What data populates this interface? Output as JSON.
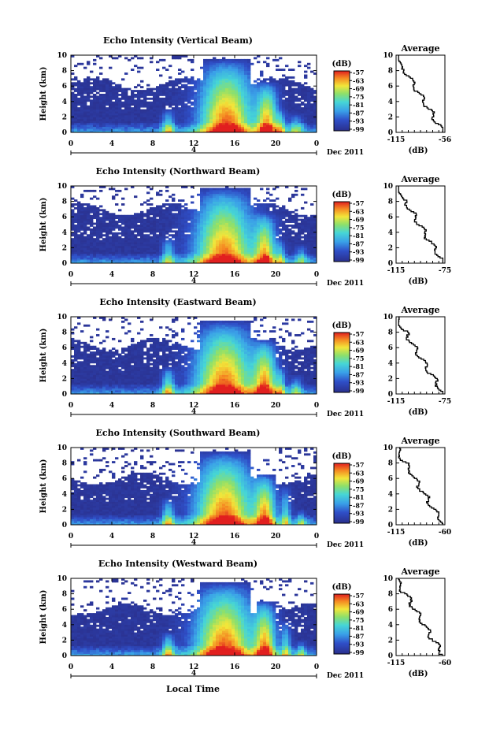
{
  "figure": {
    "xlabel": "Local Time",
    "panels_count": 5
  },
  "chart_data": [
    {
      "type": "heatmap",
      "title": "Echo Intensity (Vertical Beam)",
      "ylabel": "Height (km)",
      "xticks": [
        "0",
        "4",
        "8",
        "12",
        "16",
        "20",
        "0"
      ],
      "yticks": [
        "0",
        "2",
        "4",
        "6",
        "8",
        "10"
      ],
      "xlim": [
        0,
        24
      ],
      "ylim": [
        0,
        10
      ],
      "date_label": "Dec 2011",
      "date_sub": "4",
      "colorbar": {
        "label": "(dB)",
        "ticks": [
          "-57",
          "-63",
          "-69",
          "-75",
          "-81",
          "-87",
          "-93",
          "-99"
        ]
      },
      "profile": {
        "title": "Average",
        "xlabel": "(dB)",
        "xticks": [
          "-115",
          "-56"
        ],
        "yticks": [
          "0",
          "2",
          "4",
          "6",
          "8",
          "10"
        ]
      },
      "cloud_top_km": 6.3,
      "cells": [
        {
          "t": 9.5,
          "w": 0.6,
          "h": 3.0,
          "amp": 0.55
        },
        {
          "t": 15.2,
          "w": 2.6,
          "h": 9.5,
          "amp": 0.98
        },
        {
          "t": 19.2,
          "w": 1.0,
          "h": 6.5,
          "amp": 0.85
        },
        {
          "t": 20.5,
          "w": 0.5,
          "h": 3.0,
          "amp": 0.45
        },
        {
          "t": 22.0,
          "w": 0.7,
          "h": 2.5,
          "amp": 0.45
        }
      ]
    },
    {
      "type": "heatmap",
      "title": "Echo Intensity (Northward Beam)",
      "ylabel": "Height (km)",
      "xticks": [
        "0",
        "4",
        "8",
        "12",
        "16",
        "20",
        "0"
      ],
      "yticks": [
        "0",
        "2",
        "4",
        "6",
        "8",
        "10"
      ],
      "xlim": [
        0,
        24
      ],
      "ylim": [
        0,
        10
      ],
      "date_label": "Dec 2011",
      "date_sub": "4",
      "colorbar": {
        "label": "(dB)",
        "ticks": [
          "-57",
          "-63",
          "-69",
          "-75",
          "-81",
          "-87",
          "-93",
          "-99"
        ]
      },
      "profile": {
        "title": "Average",
        "xlabel": "(dB)",
        "xticks": [
          "-115",
          "-75"
        ],
        "yticks": [
          "0",
          "2",
          "4",
          "6",
          "8",
          "10"
        ]
      },
      "cloud_top_km": 7.0,
      "cells": [
        {
          "t": 9.5,
          "w": 0.6,
          "h": 3.5,
          "amp": 0.5
        },
        {
          "t": 15.0,
          "w": 2.8,
          "h": 9.8,
          "amp": 0.95
        },
        {
          "t": 19.0,
          "w": 1.0,
          "h": 6.5,
          "amp": 0.8
        },
        {
          "t": 20.5,
          "w": 0.5,
          "h": 3.0,
          "amp": 0.45
        },
        {
          "t": 22.5,
          "w": 0.6,
          "h": 2.5,
          "amp": 0.4
        }
      ]
    },
    {
      "type": "heatmap",
      "title": "Echo Intensity (Eastward Beam)",
      "ylabel": "Height (km)",
      "xticks": [
        "0",
        "4",
        "8",
        "12",
        "16",
        "20",
        "0"
      ],
      "yticks": [
        "0",
        "2",
        "4",
        "6",
        "8",
        "10"
      ],
      "xlim": [
        0,
        24
      ],
      "ylim": [
        0,
        10
      ],
      "date_label": "Dec 2011",
      "date_sub": "4",
      "colorbar": {
        "label": "(dB)",
        "ticks": [
          "-57",
          "-63",
          "-69",
          "-75",
          "-81",
          "-87",
          "-93",
          "-99"
        ]
      },
      "profile": {
        "title": "Average",
        "xlabel": "(dB)",
        "xticks": [
          "-115",
          "-75"
        ],
        "yticks": [
          "0",
          "2",
          "4",
          "6",
          "8",
          "10"
        ]
      },
      "cloud_top_km": 6.5,
      "cells": [
        {
          "t": 9.5,
          "w": 0.6,
          "h": 3.5,
          "amp": 0.6
        },
        {
          "t": 15.0,
          "w": 2.8,
          "h": 9.5,
          "amp": 0.98
        },
        {
          "t": 19.0,
          "w": 1.1,
          "h": 7.0,
          "amp": 0.85
        },
        {
          "t": 20.5,
          "w": 0.5,
          "h": 3.5,
          "amp": 0.45
        },
        {
          "t": 22.0,
          "w": 0.6,
          "h": 2.5,
          "amp": 0.4
        }
      ]
    },
    {
      "type": "heatmap",
      "title": "Echo Intensity (Southward Beam)",
      "ylabel": "Height (km)",
      "xticks": [
        "0",
        "4",
        "8",
        "12",
        "16",
        "20",
        "0"
      ],
      "yticks": [
        "0",
        "2",
        "4",
        "6",
        "8",
        "10"
      ],
      "xlim": [
        0,
        24
      ],
      "ylim": [
        0,
        10
      ],
      "date_label": "Dec 2011",
      "date_sub": "4",
      "colorbar": {
        "label": "(dB)",
        "ticks": [
          "-57",
          "-63",
          "-69",
          "-75",
          "-81",
          "-87",
          "-93",
          "-99"
        ]
      },
      "profile": {
        "title": "Average",
        "xlabel": "(dB)",
        "xticks": [
          "-115",
          "-60"
        ],
        "yticks": [
          "0",
          "2",
          "4",
          "6",
          "8",
          "10"
        ]
      },
      "cloud_top_km": 6.0,
      "cells": [
        {
          "t": 9.5,
          "w": 0.6,
          "h": 3.5,
          "amp": 0.55
        },
        {
          "t": 15.0,
          "w": 2.8,
          "h": 9.5,
          "amp": 0.98
        },
        {
          "t": 19.0,
          "w": 1.0,
          "h": 6.5,
          "amp": 0.85
        },
        {
          "t": 21.0,
          "w": 0.5,
          "h": 5.0,
          "amp": 0.5
        },
        {
          "t": 22.5,
          "w": 0.5,
          "h": 2.0,
          "amp": 0.4
        }
      ]
    },
    {
      "type": "heatmap",
      "title": "Echo Intensity (Westward Beam)",
      "ylabel": "Height (km)",
      "xticks": [
        "0",
        "4",
        "8",
        "12",
        "16",
        "20",
        "0"
      ],
      "yticks": [
        "0",
        "2",
        "4",
        "6",
        "8",
        "10"
      ],
      "xlim": [
        0,
        24
      ],
      "ylim": [
        0,
        10
      ],
      "date_label": "Dec 2011",
      "date_sub": "4",
      "colorbar": {
        "label": "(dB)",
        "ticks": [
          "-57",
          "-63",
          "-69",
          "-75",
          "-81",
          "-87",
          "-93",
          "-99"
        ]
      },
      "profile": {
        "title": "Average",
        "xlabel": "(dB)",
        "xticks": [
          "-115",
          "-60"
        ],
        "yticks": [
          "0",
          "2",
          "4",
          "6",
          "8",
          "10"
        ]
      },
      "cloud_top_km": 6.0,
      "cells": [
        {
          "t": 9.5,
          "w": 0.6,
          "h": 3.0,
          "amp": 0.6
        },
        {
          "t": 15.0,
          "w": 2.8,
          "h": 9.5,
          "amp": 0.98
        },
        {
          "t": 19.0,
          "w": 1.0,
          "h": 7.0,
          "amp": 0.85
        },
        {
          "t": 21.0,
          "w": 0.5,
          "h": 4.5,
          "amp": 0.5
        },
        {
          "t": 22.5,
          "w": 0.5,
          "h": 2.0,
          "amp": 0.4
        }
      ]
    }
  ]
}
